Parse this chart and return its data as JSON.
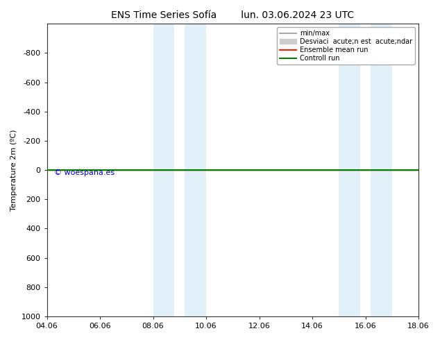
{
  "title": "ENS Time Series Sofía",
  "title2": "lun. 03.06.2024 23 UTC",
  "ylabel": "Temperature 2m (ºC)",
  "ylim_bottom": -1000,
  "ylim_top": 1000,
  "yticks": [
    -800,
    -600,
    -400,
    -200,
    0,
    200,
    400,
    600,
    800,
    1000
  ],
  "xtick_labels": [
    "04.06",
    "06.06",
    "08.06",
    "10.06",
    "12.06",
    "14.06",
    "16.06",
    "18.06"
  ],
  "xtick_positions": [
    0,
    2,
    4,
    6,
    8,
    10,
    12,
    14
  ],
  "xlim": [
    0,
    14
  ],
  "shade_regions": [
    [
      4.0,
      4.8
    ],
    [
      5.2,
      6.0
    ],
    [
      11.0,
      11.8
    ],
    [
      12.2,
      13.0
    ]
  ],
  "shade_color": "#d6eaf8",
  "shade_alpha": 0.7,
  "line_y": 0,
  "ensemble_mean_color": "#ff2000",
  "control_run_color": "#008000",
  "minmax_color": "#aaaaaa",
  "std_color": "#cccccc",
  "watermark": "© woespana.es",
  "watermark_color": "#0000cc",
  "legend_labels": [
    "min/max",
    "Desviaci  acute;n est  acute;ndar",
    "Ensemble mean run",
    "Controll run"
  ],
  "background_color": "#ffffff",
  "fig_width": 6.34,
  "fig_height": 4.9,
  "dpi": 100
}
